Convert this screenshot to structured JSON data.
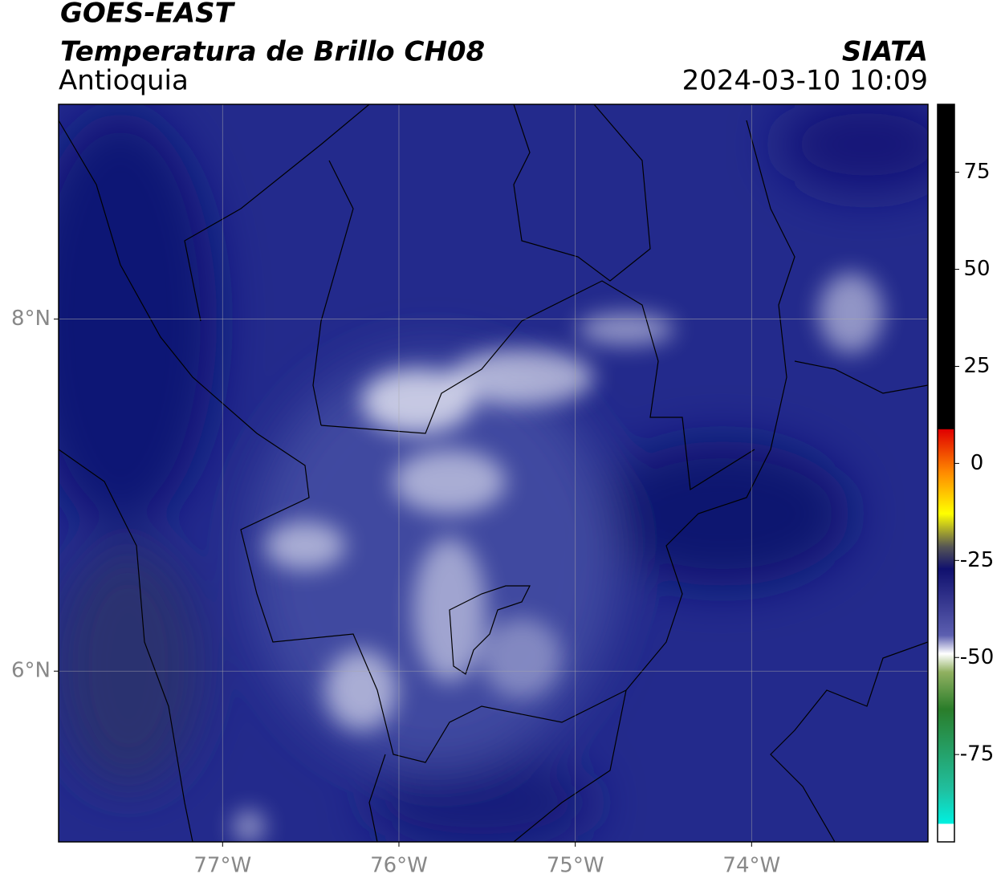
{
  "header": {
    "satellite": "GOES-EAST",
    "product": "Temperatura de Brillo CH08",
    "region": "Antioquia",
    "source": "SIATA",
    "datetime": "2024-03-10 10:09"
  },
  "map": {
    "xlim": [
      -77.93,
      -73.0
    ],
    "ylim": [
      5.03,
      9.22
    ],
    "xticks": [
      {
        "value": -77,
        "label": "77°W"
      },
      {
        "value": -76,
        "label": "76°W"
      },
      {
        "value": -75,
        "label": "75°W"
      },
      {
        "value": -74,
        "label": "74°W"
      }
    ],
    "yticks": [
      {
        "value": 6,
        "label": "6°N"
      },
      {
        "value": 8,
        "label": "8°N"
      }
    ],
    "grid": true
  },
  "colorbar": {
    "lim": [
      -97.5,
      92.5
    ],
    "ticks": [
      -75,
      -50,
      -25,
      0,
      25,
      50,
      75
    ]
  }
}
